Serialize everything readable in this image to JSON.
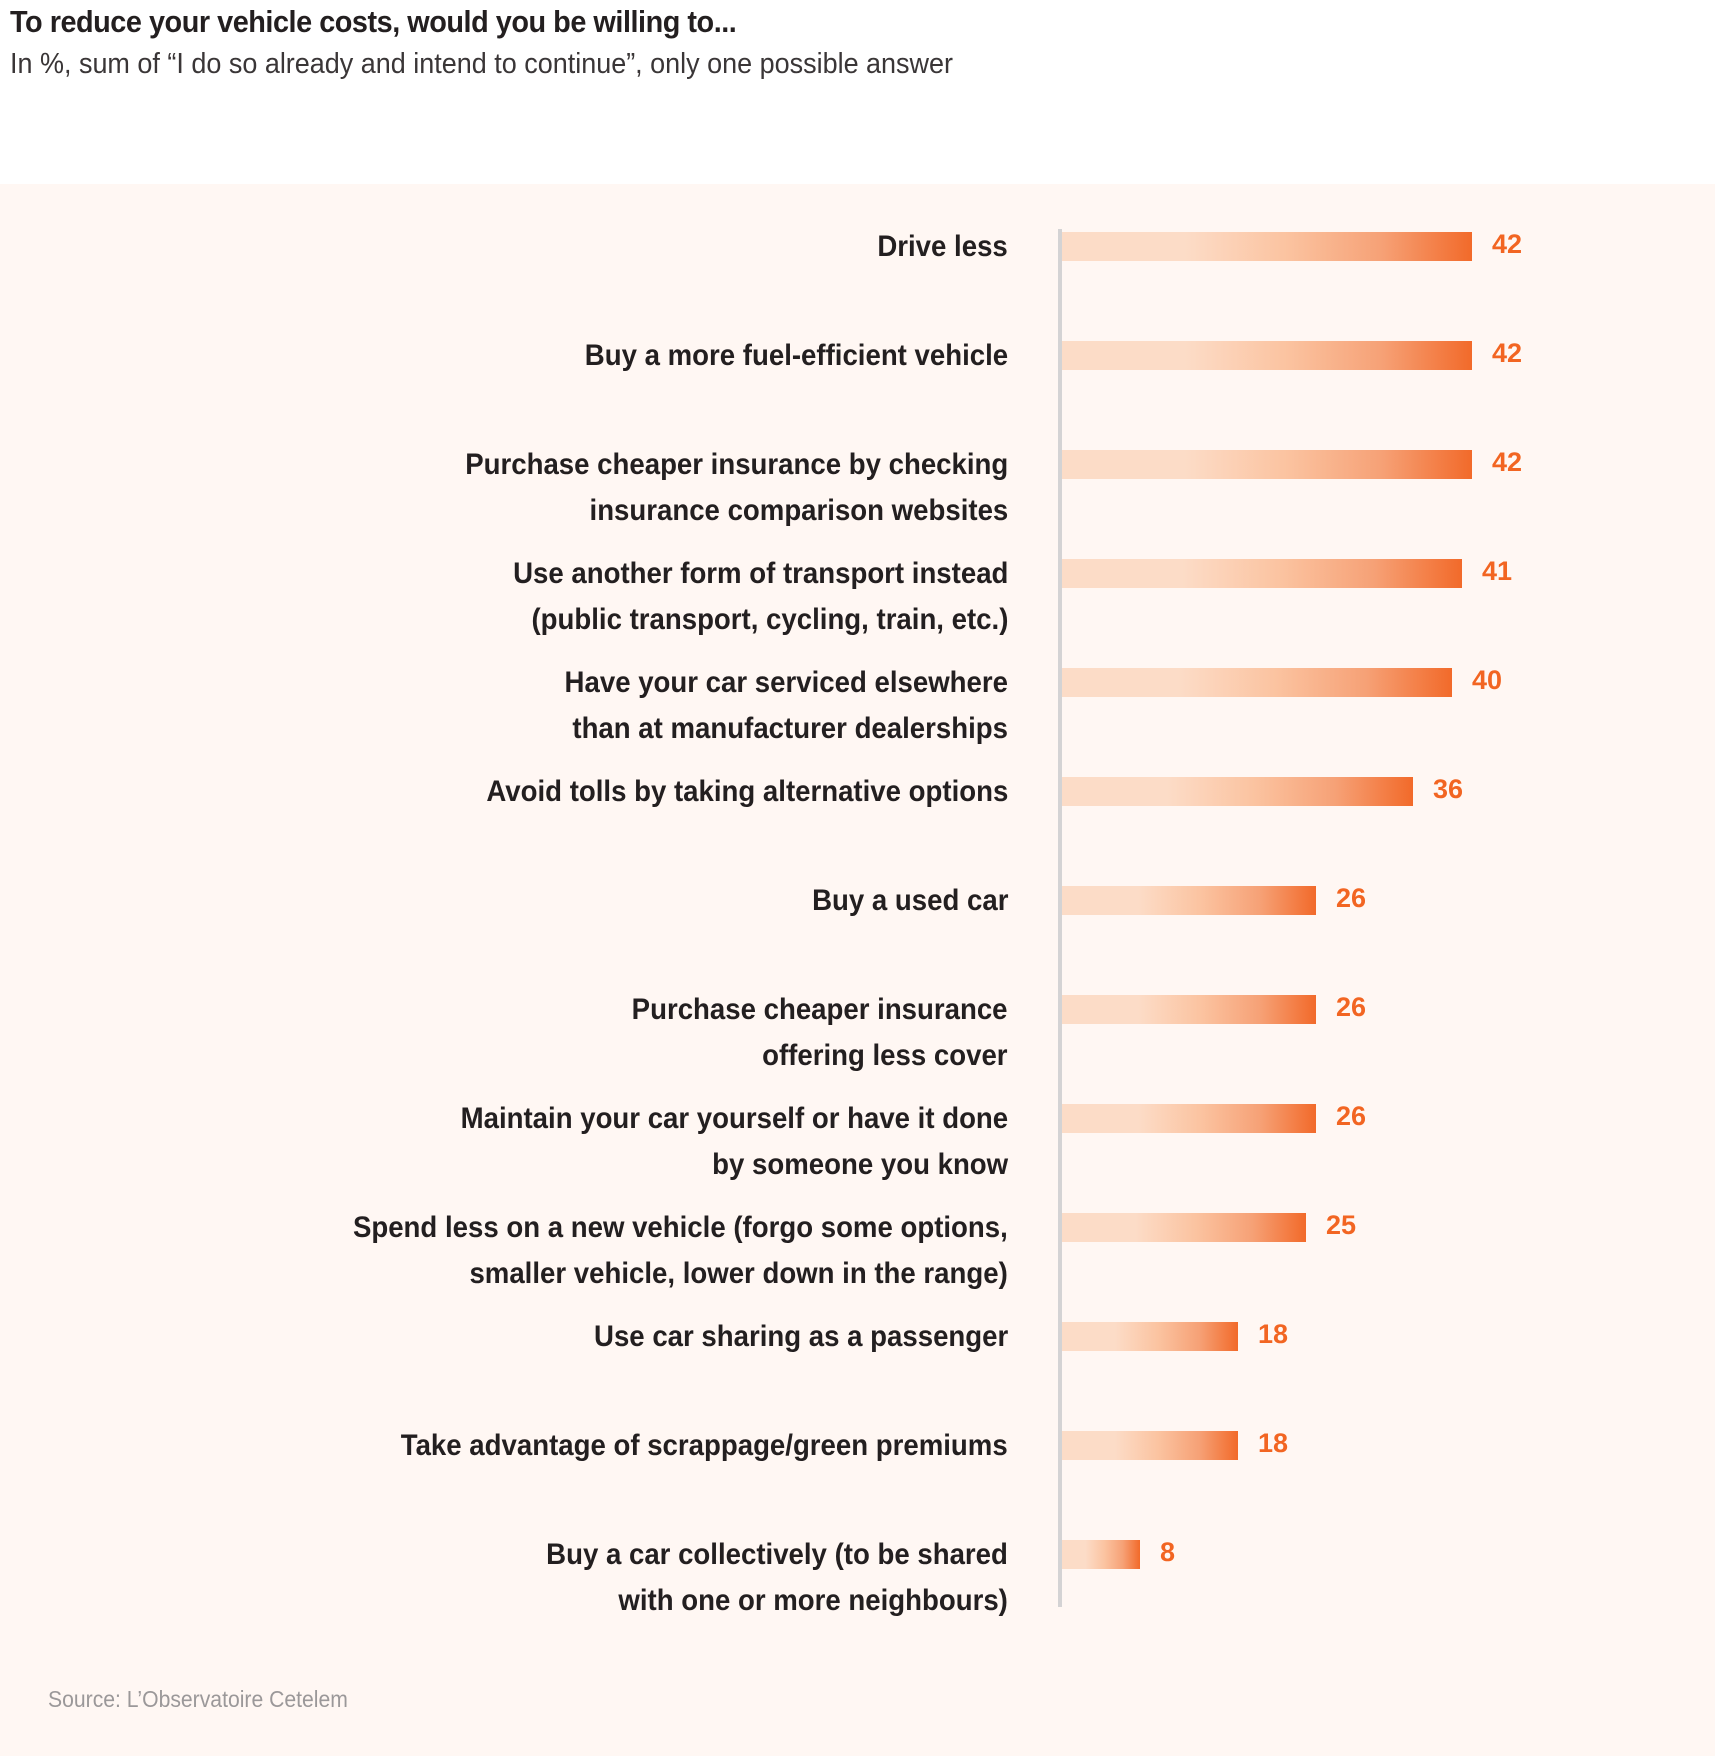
{
  "header": {
    "title": "To reduce your vehicle costs, would you be willing to...",
    "subtitle": "In %, sum of “I do so already and intend to continue”, only one possible answer"
  },
  "footer": {
    "source": "Source: L’Observatoire Cetelem"
  },
  "colors": {
    "bar_start": "#fcdcc7",
    "bar_end": "#f26a2a",
    "value_label": "#f26522",
    "panel_background": "#fff7f3",
    "axis": "#d4d3d4"
  },
  "chart_data": {
    "type": "bar",
    "orientation": "horizontal",
    "title": "To reduce your vehicle costs, would you be willing to...",
    "subtitle": "In %, sum of “I do so already and intend to continue”, only one possible answer",
    "xlabel": "",
    "ylabel": "",
    "unit": "%",
    "xlim": [
      0,
      42
    ],
    "grid": false,
    "legend": "none",
    "categories": [
      [
        "Drive less"
      ],
      [
        "Buy a more fuel-efficient vehicle"
      ],
      [
        "Purchase cheaper insurance by checking",
        "insurance comparison websites"
      ],
      [
        "Use another form of transport instead",
        "(public transport, cycling, train, etc.)"
      ],
      [
        "Have your car serviced elsewhere",
        "than at manufacturer dealerships"
      ],
      [
        "Avoid tolls by taking alternative options"
      ],
      [
        "Buy a used car"
      ],
      [
        "Purchase cheaper insurance",
        "offering less cover"
      ],
      [
        "Maintain your car yourself or have it done",
        "by someone you know"
      ],
      [
        "Spend less on a new vehicle (forgo some options,",
        "smaller vehicle, lower down in the range)"
      ],
      [
        "Use car sharing as a passenger"
      ],
      [
        "Take advantage of scrappage/green premiums"
      ],
      [
        "Buy a car collectively (to be shared",
        "with one or more neighbours)"
      ]
    ],
    "values": [
      42,
      42,
      42,
      41,
      40,
      36,
      26,
      26,
      26,
      25,
      18,
      18,
      8
    ],
    "source": "Source: L’Observatoire Cetelem"
  }
}
